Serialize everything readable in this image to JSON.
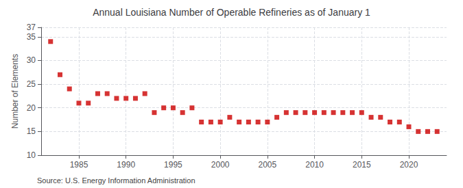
{
  "chart_data": {
    "type": "scatter",
    "title": "Annual Louisiana Number of Operable Refineries as of January 1",
    "ylabel": "Number of Elements",
    "annotation": "Source: U.S. Energy Information Administration",
    "x": [
      1982,
      1983,
      1984,
      1985,
      1986,
      1987,
      1988,
      1989,
      1990,
      1991,
      1992,
      1993,
      1994,
      1995,
      1996,
      1997,
      1998,
      1999,
      2000,
      2001,
      2002,
      2003,
      2004,
      2005,
      2006,
      2007,
      2008,
      2009,
      2010,
      2011,
      2012,
      2013,
      2014,
      2015,
      2016,
      2017,
      2018,
      2019,
      2020,
      2021,
      2022,
      2023
    ],
    "values": [
      34,
      27,
      24,
      21,
      21,
      23,
      23,
      22,
      22,
      22,
      23,
      19,
      20,
      20,
      19,
      20,
      17,
      17,
      17,
      18,
      17,
      17,
      17,
      17,
      18,
      19,
      19,
      19,
      19,
      19,
      19,
      19,
      19,
      19,
      18,
      18,
      17,
      17,
      16,
      15,
      15,
      15
    ],
    "color": "#cc0000",
    "marker": "square",
    "xlim": [
      1981,
      2024
    ],
    "xticks": [
      1985,
      1990,
      1995,
      2000,
      2005,
      2010,
      2015,
      2020
    ],
    "ylim": [
      10,
      37
    ],
    "yticks": [
      10,
      15,
      20,
      25,
      30,
      35
    ],
    "grid": true
  }
}
